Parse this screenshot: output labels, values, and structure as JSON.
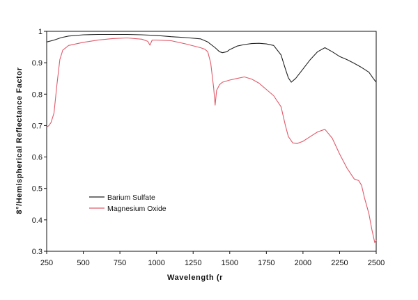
{
  "chart_data": {
    "type": "line",
    "title": "",
    "xlabel": "Wavelength   (r",
    "ylabel": "8°/Hemispherical   Reflectance   Factor",
    "xlim": [
      250,
      2500
    ],
    "ylim": [
      0.3,
      1.0
    ],
    "xticks": [
      250,
      500,
      750,
      1000,
      1250,
      1500,
      1750,
      2000,
      2250,
      2500
    ],
    "yticks": [
      0.3,
      0.4,
      0.5,
      0.6,
      0.7,
      0.8,
      0.9,
      1
    ],
    "xtick_labels": [
      "250",
      "500",
      "750",
      "1000",
      "1250",
      "1500",
      "1750",
      "2000",
      "2250",
      "2500"
    ],
    "ytick_labels": [
      "0.3",
      "0.4",
      "0.5",
      "0.6",
      "0.7",
      "0.8",
      "0.9",
      "1"
    ],
    "grid": false,
    "legend_position": "lower-left",
    "series": [
      {
        "name": "Barium  Sulfate",
        "color": "#222222",
        "x": [
          250,
          300,
          350,
          400,
          500,
          600,
          700,
          800,
          900,
          1000,
          1100,
          1200,
          1300,
          1350,
          1400,
          1430,
          1450,
          1480,
          1500,
          1550,
          1600,
          1650,
          1700,
          1750,
          1800,
          1850,
          1880,
          1900,
          1920,
          1950,
          2000,
          2050,
          2100,
          2150,
          2200,
          2250,
          2300,
          2350,
          2400,
          2450,
          2480,
          2500
        ],
        "y": [
          0.966,
          0.972,
          0.98,
          0.985,
          0.989,
          0.99,
          0.99,
          0.99,
          0.989,
          0.987,
          0.983,
          0.98,
          0.976,
          0.966,
          0.948,
          0.935,
          0.932,
          0.935,
          0.942,
          0.953,
          0.958,
          0.961,
          0.962,
          0.96,
          0.955,
          0.925,
          0.88,
          0.852,
          0.838,
          0.85,
          0.88,
          0.91,
          0.935,
          0.948,
          0.935,
          0.92,
          0.91,
          0.898,
          0.885,
          0.87,
          0.85,
          0.838
        ]
      },
      {
        "name": "Magnesium  Oxide",
        "color": "#e05a6a",
        "x": [
          250,
          265,
          280,
          300,
          320,
          340,
          360,
          400,
          500,
          600,
          700,
          800,
          900,
          940,
          955,
          970,
          1000,
          1100,
          1200,
          1300,
          1330,
          1350,
          1370,
          1390,
          1400,
          1410,
          1430,
          1450,
          1500,
          1550,
          1600,
          1650,
          1700,
          1750,
          1800,
          1850,
          1880,
          1900,
          1930,
          1960,
          2000,
          2050,
          2100,
          2150,
          2200,
          2250,
          2300,
          2350,
          2380,
          2400,
          2420,
          2450,
          2470,
          2490,
          2500
        ],
        "y": [
          0.695,
          0.7,
          0.71,
          0.74,
          0.83,
          0.91,
          0.94,
          0.955,
          0.965,
          0.972,
          0.977,
          0.979,
          0.975,
          0.968,
          0.956,
          0.972,
          0.972,
          0.97,
          0.96,
          0.948,
          0.943,
          0.935,
          0.9,
          0.82,
          0.765,
          0.812,
          0.83,
          0.838,
          0.845,
          0.85,
          0.855,
          0.848,
          0.835,
          0.815,
          0.795,
          0.76,
          0.7,
          0.665,
          0.645,
          0.643,
          0.65,
          0.665,
          0.68,
          0.688,
          0.66,
          0.61,
          0.565,
          0.53,
          0.525,
          0.51,
          0.47,
          0.42,
          0.37,
          0.328,
          0.335
        ]
      }
    ]
  }
}
